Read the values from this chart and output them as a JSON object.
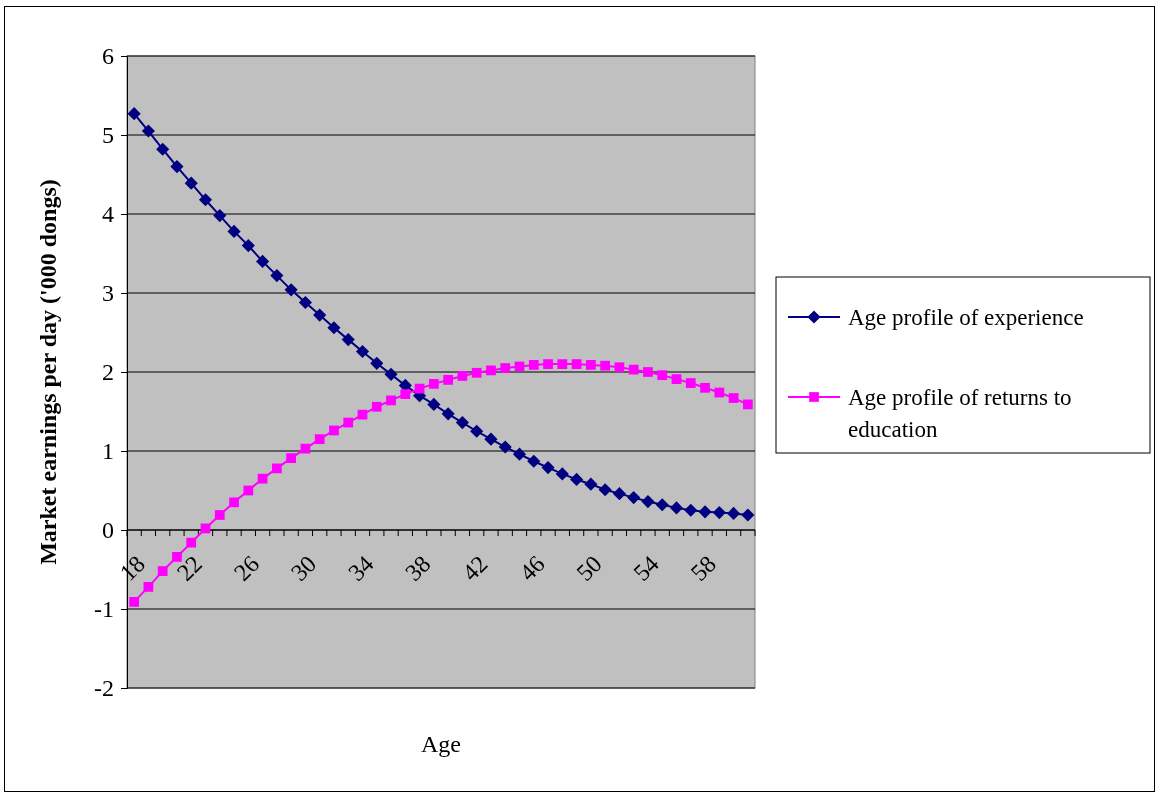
{
  "chart_data": {
    "type": "line",
    "xlabel": "Age",
    "ylabel": "Market earnings per day ('000 dongs)",
    "categories": [
      "18",
      null,
      null,
      null,
      "22",
      null,
      null,
      null,
      "26",
      null,
      null,
      null,
      "30",
      null,
      null,
      null,
      "34",
      null,
      null,
      null,
      "38",
      null,
      null,
      null,
      "42",
      null,
      null,
      null,
      "46",
      null,
      null,
      null,
      "50",
      null,
      null,
      null,
      "54",
      null,
      null,
      null,
      "58",
      null,
      null,
      null
    ],
    "ylim": [
      -2,
      6
    ],
    "yticks": [
      -2,
      -1,
      0,
      1,
      2,
      3,
      4,
      5,
      6
    ],
    "grid": "y",
    "legend": "right",
    "series": [
      {
        "name": "Age profile of experience",
        "color": "#000080",
        "marker": "diamond",
        "values": [
          5.27,
          5.05,
          4.82,
          4.6,
          4.39,
          4.18,
          3.98,
          3.78,
          3.6,
          3.4,
          3.22,
          3.04,
          2.88,
          2.72,
          2.56,
          2.41,
          2.26,
          2.11,
          1.97,
          1.83,
          1.7,
          1.59,
          1.47,
          1.36,
          1.25,
          1.15,
          1.05,
          0.96,
          0.87,
          0.79,
          0.71,
          0.64,
          0.58,
          0.51,
          0.46,
          0.41,
          0.36,
          0.32,
          0.28,
          0.25,
          0.23,
          0.22,
          0.21,
          0.19
        ]
      },
      {
        "name": "Age profile of returns to education",
        "color": "#ff00ff",
        "marker": "square",
        "values": [
          -0.91,
          -0.72,
          -0.52,
          -0.34,
          -0.16,
          0.02,
          0.19,
          0.35,
          0.5,
          0.65,
          0.78,
          0.91,
          1.03,
          1.15,
          1.26,
          1.36,
          1.46,
          1.56,
          1.64,
          1.72,
          1.79,
          1.85,
          1.9,
          1.95,
          1.99,
          2.02,
          2.05,
          2.07,
          2.09,
          2.1,
          2.1,
          2.1,
          2.09,
          2.08,
          2.06,
          2.03,
          2.0,
          1.96,
          1.91,
          1.86,
          1.8,
          1.74,
          1.67,
          1.59
        ]
      }
    ]
  }
}
